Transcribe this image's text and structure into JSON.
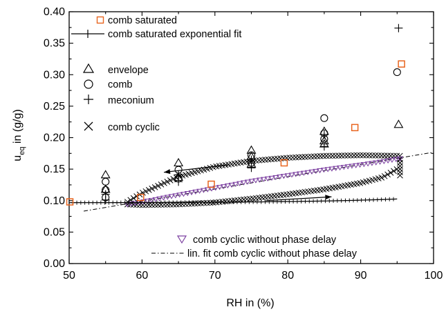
{
  "chart_data": {
    "type": "scatter",
    "title": "",
    "xlabel": "RH in (%)",
    "ylabel_main": "u",
    "ylabel_sub": "eq",
    "ylabel_rest": " in (g/g)",
    "xlim": [
      50,
      100
    ],
    "ylim": [
      0.0,
      0.4
    ],
    "xticks": [
      50,
      60,
      70,
      80,
      90,
      100
    ],
    "yticks": [
      "0.00",
      "0.05",
      "0.10",
      "0.15",
      "0.20",
      "0.25",
      "0.30",
      "0.35",
      "0.40"
    ],
    "legend_position": "upper-left and lower-right",
    "series": [
      {
        "name": "comb saturated",
        "marker": "square",
        "color": "#e8641e",
        "x": [
          50.1,
          59.8,
          69.5,
          79.5,
          89.2,
          95.6
        ],
        "y": [
          0.098,
          0.105,
          0.126,
          0.16,
          0.216,
          0.317
        ]
      },
      {
        "name": "comb saturated exponential fit",
        "marker": "plus-line",
        "color": "#000000",
        "fit": {
          "y0": 0.0965,
          "a": 0.000209,
          "b": 0.075
        }
      },
      {
        "name": "envelope",
        "marker": "triangle-up",
        "color": "#000000",
        "x": [
          55,
          55,
          65,
          65,
          75,
          75,
          75,
          85,
          85,
          85,
          95.2
        ],
        "y": [
          0.141,
          0.118,
          0.16,
          0.137,
          0.18,
          0.17,
          0.158,
          0.21,
          0.195,
          0.19,
          0.221
        ]
      },
      {
        "name": "comb",
        "marker": "circle",
        "color": "#000000",
        "x": [
          55,
          55,
          55,
          65,
          65,
          75,
          75,
          85,
          85,
          85,
          95
        ],
        "y": [
          0.13,
          0.117,
          0.105,
          0.149,
          0.135,
          0.172,
          0.16,
          0.231,
          0.207,
          0.198,
          0.304
        ]
      },
      {
        "name": "meconium",
        "marker": "plus",
        "color": "#000000",
        "x": [
          55,
          55,
          65,
          65,
          75,
          75,
          85,
          85,
          95.2
        ],
        "y": [
          0.11,
          0.101,
          0.141,
          0.13,
          0.165,
          0.152,
          0.205,
          0.186,
          0.374
        ]
      },
      {
        "name": "comb cyclic",
        "marker": "x",
        "color": "#000000",
        "loop": {
          "upper": {
            "x": [
              58,
              60,
              65,
              70,
              75,
              80,
              85,
              90,
              95.5
            ],
            "y": [
              0.098,
              0.112,
              0.138,
              0.154,
              0.163,
              0.168,
              0.171,
              0.172,
              0.171
            ]
          },
          "lower": {
            "x": [
              58,
              60,
              65,
              70,
              75,
              80,
              85,
              90,
              93,
              95,
              95.5
            ],
            "y": [
              0.094,
              0.093,
              0.094,
              0.097,
              0.103,
              0.11,
              0.118,
              0.128,
              0.137,
              0.15,
              0.171
            ]
          }
        }
      },
      {
        "name": "comb cyclic without phase delay",
        "marker": "triangle-down",
        "color": "#7b3fa0",
        "x": [
          58,
          60,
          65,
          70,
          75,
          80,
          85,
          90,
          93,
          95.5
        ],
        "y": [
          0.094,
          0.098,
          0.109,
          0.12,
          0.131,
          0.14,
          0.149,
          0.157,
          0.162,
          0.167
        ]
      },
      {
        "name": "lin. fit comb cyclic without phase delay",
        "marker": "dash-dot-line",
        "color": "#000000",
        "fit": {
          "slope": 0.00195,
          "intercept": -0.0181
        }
      }
    ],
    "annotations": [
      {
        "type": "arrow",
        "direction": "left",
        "from": [
          72,
          0.157
        ],
        "to": [
          63,
          0.145
        ]
      },
      {
        "type": "arrow",
        "direction": "right",
        "from": [
          77,
          0.1
        ],
        "to": [
          86,
          0.106
        ]
      }
    ]
  }
}
